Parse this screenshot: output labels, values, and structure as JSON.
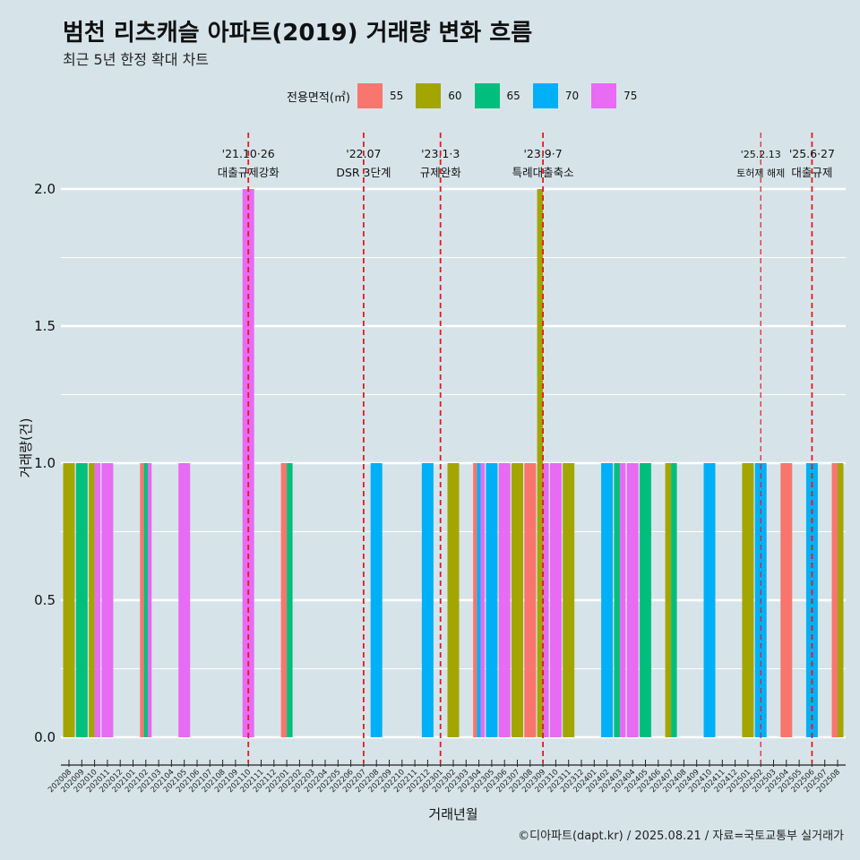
{
  "title": "범천 리츠캐슬 아파트(2019) 거래량 변화 흐름",
  "subtitle": "최근 5년 한정 확대 차트",
  "caption": "©디아파트(dapt.kr) / 2025.08.21 / 자료=국토교통부 실거래가",
  "legend": {
    "title": "전용면적(㎡)",
    "items": [
      {
        "label": "55",
        "color": "#F8766D"
      },
      {
        "label": "60",
        "color": "#A3A500"
      },
      {
        "label": "65",
        "color": "#00BF7D"
      },
      {
        "label": "70",
        "color": "#00B0F6"
      },
      {
        "label": "75",
        "color": "#E76BF3"
      }
    ]
  },
  "chart_data": {
    "type": "bar",
    "stacking": "dodge",
    "xlabel": "거래년월",
    "ylabel": "거래량(건)",
    "ylim": [
      0,
      2
    ],
    "yticks": [
      "0.0",
      "0.5",
      "1.0",
      "1.5",
      "2.0"
    ],
    "categories": [
      "202008",
      "202009",
      "202010",
      "202011",
      "202012",
      "202101",
      "202102",
      "202103",
      "202104",
      "202105",
      "202106",
      "202107",
      "202108",
      "202109",
      "202110",
      "202111",
      "202112",
      "202201",
      "202202",
      "202203",
      "202204",
      "202205",
      "202206",
      "202207",
      "202208",
      "202209",
      "202210",
      "202211",
      "202212",
      "202301",
      "202302",
      "202303",
      "202304",
      "202305",
      "202306",
      "202307",
      "202308",
      "202309",
      "202310",
      "202311",
      "202312",
      "202401",
      "202402",
      "202403",
      "202404",
      "202405",
      "202406",
      "202407",
      "202408",
      "202409",
      "202410",
      "202411",
      "202412",
      "202501",
      "202502",
      "202503",
      "202504",
      "202505",
      "202506",
      "202507",
      "202508"
    ],
    "bars": [
      {
        "month": "202008",
        "series": [
          "60"
        ],
        "values": [
          1
        ]
      },
      {
        "month": "202009",
        "series": [
          "65"
        ],
        "values": [
          1
        ]
      },
      {
        "month": "202010",
        "series": [
          "60",
          "75"
        ],
        "values": [
          1,
          1
        ]
      },
      {
        "month": "202011",
        "series": [
          "75"
        ],
        "values": [
          1
        ]
      },
      {
        "month": "202102",
        "series": [
          "55",
          "65",
          "75"
        ],
        "values": [
          1,
          1,
          1
        ]
      },
      {
        "month": "202105",
        "series": [
          "75"
        ],
        "values": [
          1
        ]
      },
      {
        "month": "202110",
        "series": [
          "75"
        ],
        "values": [
          2
        ]
      },
      {
        "month": "202201",
        "series": [
          "55",
          "65"
        ],
        "values": [
          1,
          1
        ]
      },
      {
        "month": "202208",
        "series": [
          "70"
        ],
        "values": [
          1
        ]
      },
      {
        "month": "202212",
        "series": [
          "70"
        ],
        "values": [
          1
        ]
      },
      {
        "month": "202302",
        "series": [
          "60"
        ],
        "values": [
          1
        ]
      },
      {
        "month": "202304",
        "series": [
          "55",
          "70",
          "75"
        ],
        "values": [
          1,
          1,
          1
        ]
      },
      {
        "month": "202305",
        "series": [
          "70"
        ],
        "values": [
          1
        ]
      },
      {
        "month": "202306",
        "series": [
          "75"
        ],
        "values": [
          1
        ]
      },
      {
        "month": "202307",
        "series": [
          "60"
        ],
        "values": [
          1
        ]
      },
      {
        "month": "202308",
        "series": [
          "55"
        ],
        "values": [
          1
        ]
      },
      {
        "month": "202309",
        "series": [
          "60",
          "75"
        ],
        "values": [
          2,
          1
        ]
      },
      {
        "month": "202310",
        "series": [
          "75"
        ],
        "values": [
          1
        ]
      },
      {
        "month": "202311",
        "series": [
          "60"
        ],
        "values": [
          1
        ]
      },
      {
        "month": "202402",
        "series": [
          "70"
        ],
        "values": [
          1
        ]
      },
      {
        "month": "202403",
        "series": [
          "65",
          "75"
        ],
        "values": [
          1,
          1
        ]
      },
      {
        "month": "202404",
        "series": [
          "75"
        ],
        "values": [
          1
        ]
      },
      {
        "month": "202405",
        "series": [
          "65"
        ],
        "values": [
          1
        ]
      },
      {
        "month": "202407",
        "series": [
          "60",
          "65"
        ],
        "values": [
          1,
          1
        ]
      },
      {
        "month": "202410",
        "series": [
          "70"
        ],
        "values": [
          1
        ]
      },
      {
        "month": "202501",
        "series": [
          "60"
        ],
        "values": [
          1
        ]
      },
      {
        "month": "202502",
        "series": [
          "70"
        ],
        "values": [
          1
        ]
      },
      {
        "month": "202504",
        "series": [
          "55"
        ],
        "values": [
          1
        ]
      },
      {
        "month": "202506",
        "series": [
          "70"
        ],
        "values": [
          1
        ]
      },
      {
        "month": "202508",
        "series": [
          "55",
          "60"
        ],
        "values": [
          1,
          1
        ]
      }
    ],
    "events": [
      {
        "month": "202110",
        "date_label": "'21.10·26",
        "label": "대출규제강화",
        "small": false
      },
      {
        "month": "202207",
        "date_label": "'22.07",
        "label": "DSR 3단계",
        "small": false
      },
      {
        "month": "202301",
        "date_label": "'23.1·3",
        "label": "규제완화",
        "small": false
      },
      {
        "month": "202309",
        "date_label": "'23.9·7",
        "label": "특례대출축소",
        "small": false
      },
      {
        "month": "202502",
        "date_label": "'25.2.13",
        "label": "토허제 해제",
        "small": true
      },
      {
        "month": "202506",
        "date_label": "'25.6·27",
        "label": "대출규제",
        "small": false
      }
    ],
    "event_line_color": "#E41A1C",
    "grid": true,
    "legend_position": "top"
  }
}
